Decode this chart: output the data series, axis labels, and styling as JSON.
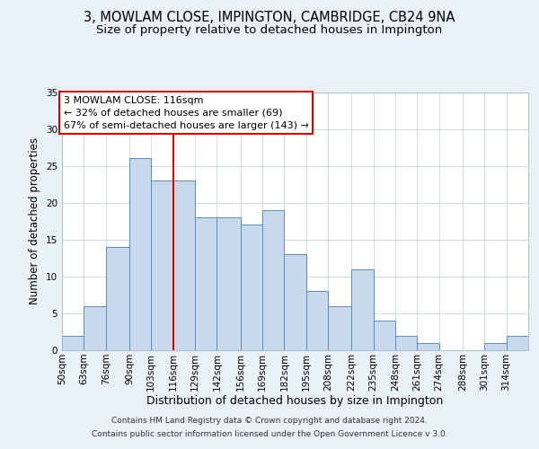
{
  "title": "3, MOWLAM CLOSE, IMPINGTON, CAMBRIDGE, CB24 9NA",
  "subtitle": "Size of property relative to detached houses in Impington",
  "xlabel": "Distribution of detached houses by size in Impington",
  "ylabel": "Number of detached properties",
  "footer_lines": [
    "Contains HM Land Registry data © Crown copyright and database right 2024.",
    "Contains public sector information licensed under the Open Government Licence v 3.0."
  ],
  "bin_labels": [
    "50sqm",
    "63sqm",
    "76sqm",
    "90sqm",
    "103sqm",
    "116sqm",
    "129sqm",
    "142sqm",
    "156sqm",
    "169sqm",
    "182sqm",
    "195sqm",
    "208sqm",
    "222sqm",
    "235sqm",
    "248sqm",
    "261sqm",
    "274sqm",
    "288sqm",
    "301sqm",
    "314sqm"
  ],
  "bin_edges": [
    50,
    63,
    76,
    90,
    103,
    116,
    129,
    142,
    156,
    169,
    182,
    195,
    208,
    222,
    235,
    248,
    261,
    274,
    288,
    301,
    314,
    327
  ],
  "counts": [
    2,
    6,
    14,
    26,
    23,
    23,
    18,
    18,
    17,
    19,
    13,
    8,
    6,
    11,
    4,
    2,
    1,
    0,
    0,
    1,
    2
  ],
  "bar_color": "#c8d9ec",
  "bar_edge_color": "#5b8db8",
  "reference_line_x": 116,
  "reference_line_color": "#cc0000",
  "annotation_line1": "3 MOWLAM CLOSE: 116sqm",
  "annotation_line2": "← 32% of detached houses are smaller (69)",
  "annotation_line3": "67% of semi-detached houses are larger (143) →",
  "annotation_box_edge_color": "#cc0000",
  "ylim": [
    0,
    35
  ],
  "yticks": [
    0,
    5,
    10,
    15,
    20,
    25,
    30,
    35
  ],
  "background_color": "#eaf0f8",
  "plot_background": "#ffffff",
  "title_fontsize": 10.5,
  "subtitle_fontsize": 9.5,
  "xlabel_fontsize": 9,
  "ylabel_fontsize": 8.5,
  "tick_fontsize": 7.5,
  "annotation_fontsize": 8,
  "footer_fontsize": 6.5
}
